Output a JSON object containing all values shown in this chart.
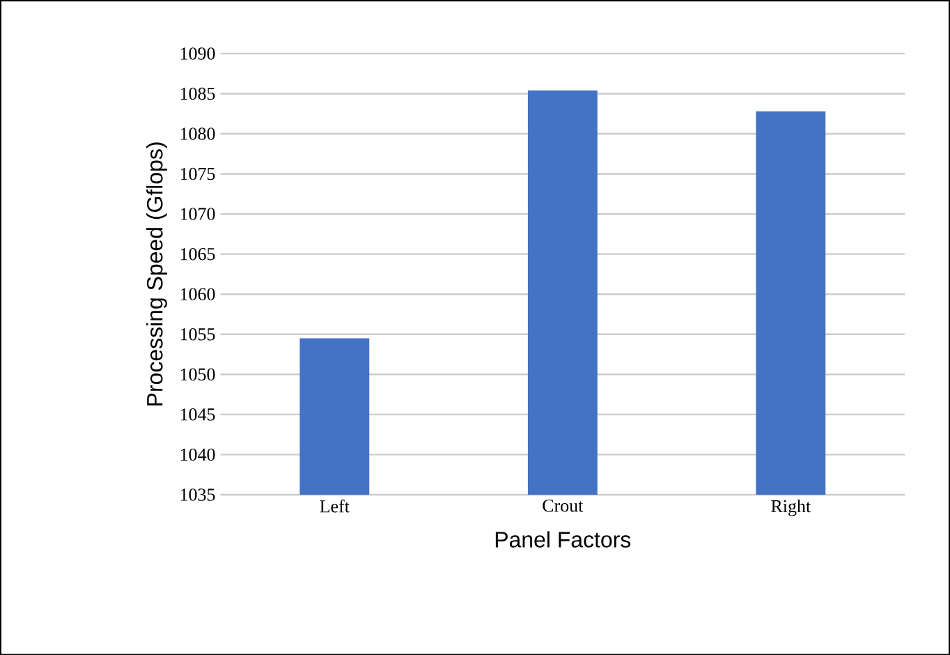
{
  "chart_data": {
    "type": "bar",
    "xlabel": "Panel Factors",
    "ylabel": "Processing Speed (Gflops)",
    "categories": [
      "Left",
      "Crout",
      "Right"
    ],
    "values": [
      1054.5,
      1085.4,
      1082.8
    ],
    "color": "#4472c4",
    "ylim": [
      1035,
      1090
    ],
    "yticks": [
      1035,
      1040,
      1045,
      1050,
      1055,
      1060,
      1065,
      1070,
      1075,
      1080,
      1085,
      1090
    ],
    "grid": "y"
  }
}
